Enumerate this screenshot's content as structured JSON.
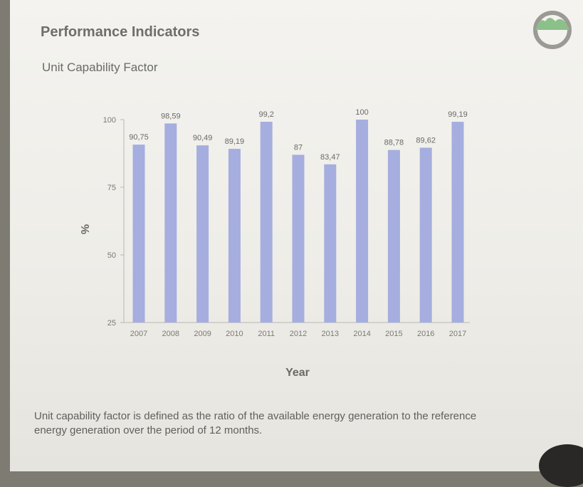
{
  "slide": {
    "title": "Performance Indicators",
    "subtitle": "Unit Capability Factor",
    "caption": "Unit capability factor is defined as the ratio of the available energy generation to the reference energy generation over the period of 12 months."
  },
  "colors": {
    "bar": "#a5aede",
    "title": "#6f6e69",
    "logo_green": "#8cc08a",
    "logo_gray": "#9c9a94"
  },
  "chart_data": {
    "type": "bar",
    "categories": [
      "2007",
      "2008",
      "2009",
      "2010",
      "2011",
      "2012",
      "2013",
      "2014",
      "2015",
      "2016",
      "2017"
    ],
    "values": [
      90.75,
      98.59,
      90.49,
      89.19,
      99.2,
      87,
      83.47,
      100,
      88.78,
      89.62,
      99.19
    ],
    "value_labels": [
      "90,75",
      "98,59",
      "90,49",
      "89,19",
      "99,2",
      "87",
      "83,47",
      "100",
      "88,78",
      "89,62",
      "99,19"
    ],
    "yticks": [
      25,
      50,
      75,
      100
    ],
    "ylim": [
      25,
      100
    ],
    "xlabel": "Year",
    "ylabel": "%",
    "grid": false,
    "legend": "none"
  }
}
